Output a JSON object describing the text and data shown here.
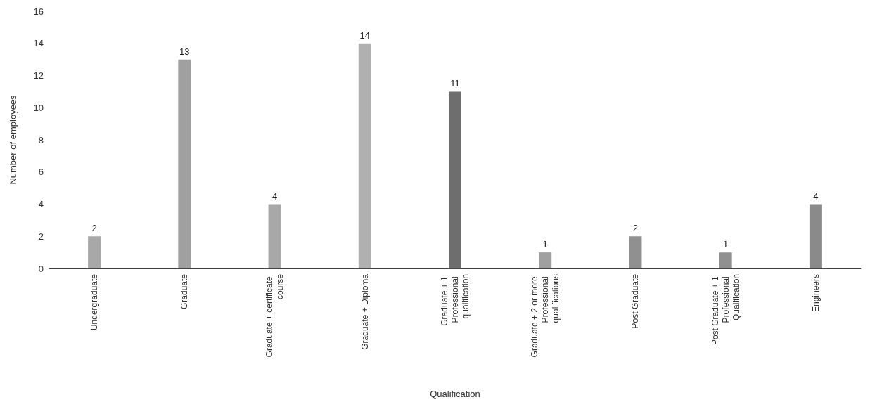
{
  "chart_data": {
    "type": "bar",
    "xlabel": "Qualification",
    "ylabel": "Number of employees",
    "categories": [
      "Undergraduate",
      "Graduate",
      "Graduate + certificate course",
      "Graduate + Diploma",
      "Graduate + 1 Professional qualification",
      "Graduate + 2 or more Professional qualifications",
      "Post Graduate",
      "Post Graduate + 1 Professional Qualification",
      "Engineers"
    ],
    "values": [
      2,
      13,
      4,
      14,
      11,
      1,
      2,
      1,
      4
    ],
    "colors": [
      "#a8a8a8",
      "#a0a0a0",
      "#a8a8a8",
      "#b0b0b0",
      "#6e6e6e",
      "#a0a0a0",
      "#909090",
      "#909090",
      "#8a8a8a"
    ],
    "ylim": [
      0,
      16
    ],
    "yticks": [
      0,
      2,
      4,
      6,
      8,
      10,
      12,
      14,
      16
    ],
    "grid": false,
    "data_labels": true
  }
}
